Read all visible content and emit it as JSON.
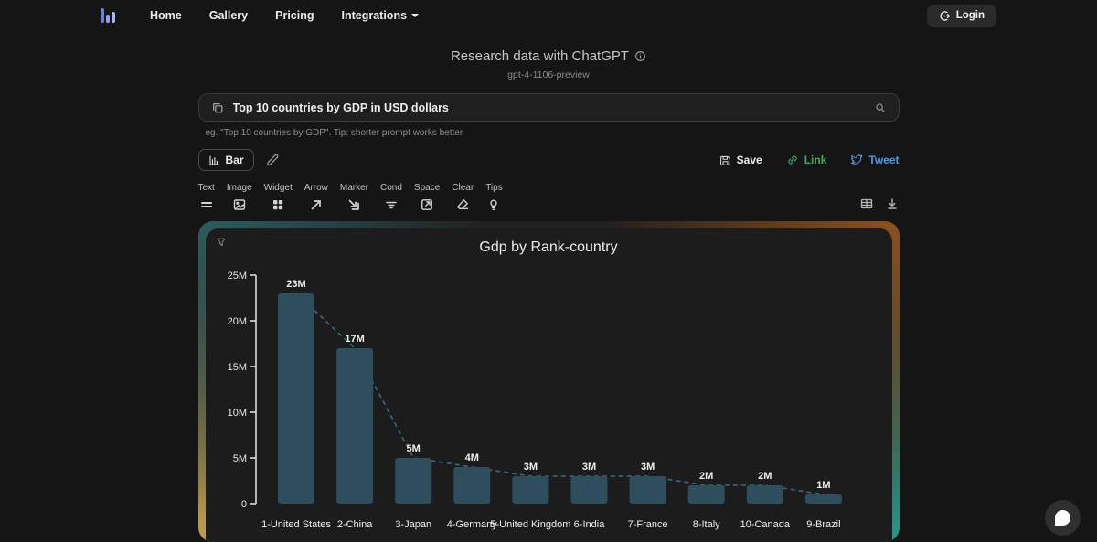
{
  "nav": {
    "items": [
      {
        "label": "Home"
      },
      {
        "label": "Gallery"
      },
      {
        "label": "Pricing"
      },
      {
        "label": "Integrations"
      }
    ],
    "login_label": "Login"
  },
  "header": {
    "title": "Research data with ChatGPT",
    "model": "gpt-4-1106-preview"
  },
  "search": {
    "value": "Top 10 countries by GDP in USD dollars",
    "hint": "eg. \"Top 10 countries by GDP\". Tip: shorter prompt works better"
  },
  "controls": {
    "chart_type_label": "Bar",
    "save_label": "Save",
    "link_label": "Link",
    "tweet_label": "Tweet"
  },
  "toolbar": {
    "items": [
      {
        "label": "Text"
      },
      {
        "label": "Image"
      },
      {
        "label": "Widget"
      },
      {
        "label": "Arrow"
      },
      {
        "label": "Marker"
      },
      {
        "label": "Cond"
      },
      {
        "label": "Space"
      },
      {
        "label": "Clear"
      },
      {
        "label": "Tips"
      }
    ]
  },
  "chart_data": {
    "type": "bar",
    "title": "Gdp by Rank-country",
    "categories": [
      "1-United States",
      "2-China",
      "3-Japan",
      "4-Germany",
      "5-United Kingdom",
      "6-India",
      "7-France",
      "8-Italy",
      "10-Canada",
      "9-Brazil"
    ],
    "values": [
      23,
      17,
      5,
      4,
      3,
      3,
      3,
      2,
      2,
      1
    ],
    "value_labels": [
      "23M",
      "17M",
      "5M",
      "4M",
      "3M",
      "3M",
      "3M",
      "2M",
      "2M",
      "1M"
    ],
    "unit": "M",
    "y_ticks": [
      "0",
      "5M",
      "10M",
      "15M",
      "20M",
      "25M"
    ],
    "ylim": [
      0,
      25000000
    ],
    "xlabel": "",
    "ylabel": "",
    "grid": false,
    "legend": "none",
    "bar_color": "#2e4e5d",
    "trendline_color": "#3a6a80",
    "trendline_style": "dashed",
    "axis_color": "#e6e6e6",
    "label_color": "#f0f0f0"
  }
}
